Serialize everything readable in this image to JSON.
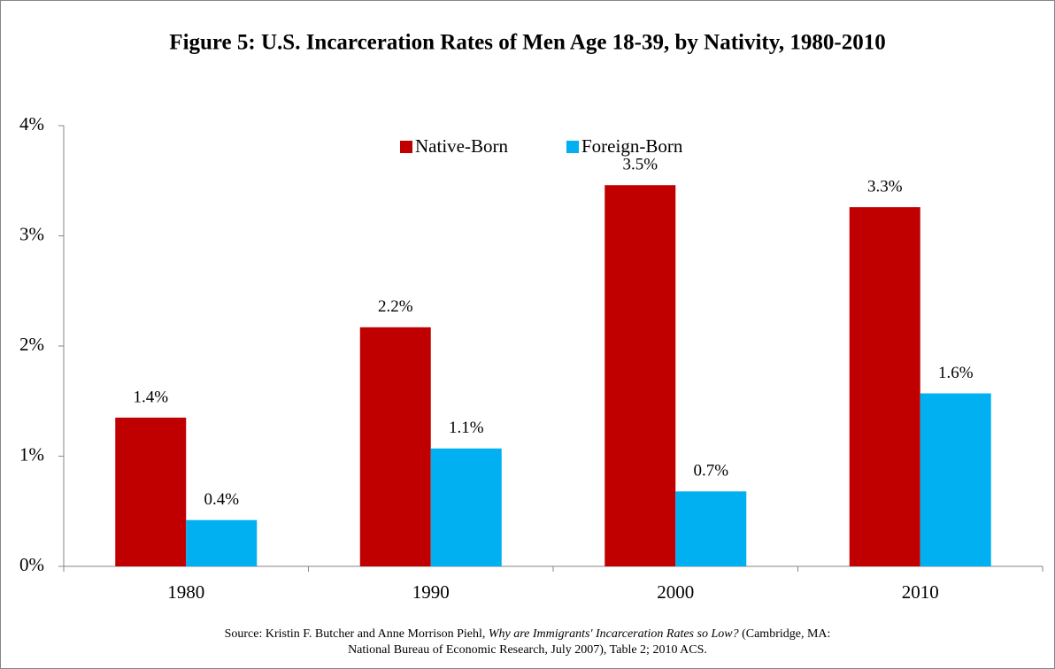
{
  "chart_data": {
    "type": "bar",
    "title": "Figure 5: U.S. Incarceration Rates of Men Age 18-39, by Nativity, 1980-2010",
    "categories": [
      "1980",
      "1990",
      "2000",
      "2010"
    ],
    "series": [
      {
        "name": "Native-Born",
        "color": "#c00000",
        "values": [
          1.35,
          2.17,
          3.46,
          3.26
        ],
        "value_labels": [
          "1.4%",
          "2.2%",
          "3.5%",
          "3.3%"
        ]
      },
      {
        "name": "Foreign-Born",
        "color": "#00b0f0",
        "values": [
          0.42,
          1.07,
          0.68,
          1.57
        ],
        "value_labels": [
          "0.4%",
          "1.1%",
          "0.7%",
          "1.6%"
        ]
      }
    ],
    "ylim": [
      0,
      4
    ],
    "yticks": [
      {
        "value": 0,
        "label": "0%"
      },
      {
        "value": 1,
        "label": "1%"
      },
      {
        "value": 2,
        "label": "2%"
      },
      {
        "value": 3,
        "label": "3%"
      },
      {
        "value": 4,
        "label": "4%"
      }
    ],
    "grid": false,
    "legend": "top",
    "source": {
      "line1": [
        "Source: Kristin F. Butcher and Anne  Morrison Piehl, ",
        "Why are Immigrants' Incarceration Rates so Low?",
        " (Cambridge, MA:"
      ],
      "line2": "National Bureau of Economic Research, July 2007), Table 2; 2010 ACS."
    }
  }
}
